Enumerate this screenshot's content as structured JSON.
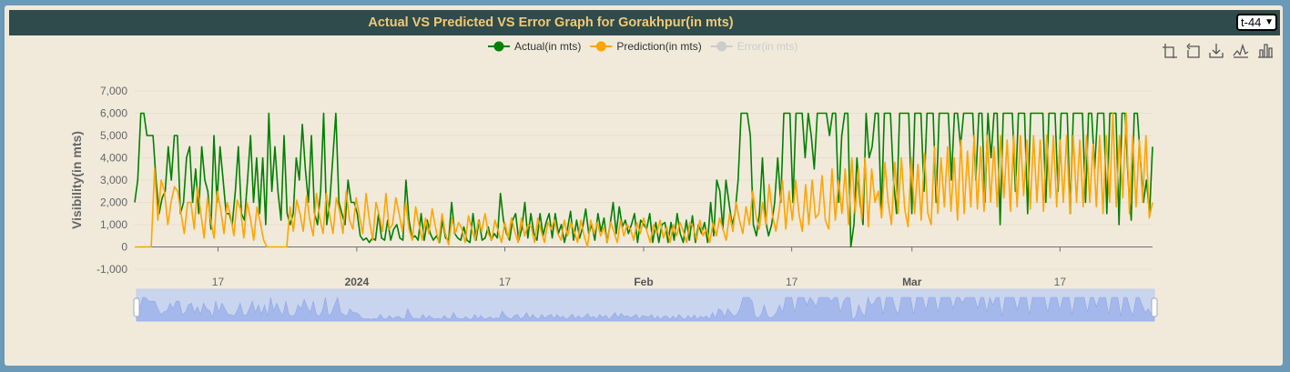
{
  "header": {
    "title": "Actual VS Predicted VS Error Graph for Gorakhpur(in mts)",
    "selector_value": "t-44"
  },
  "legend": [
    {
      "label": "Actual(in mts)",
      "color": "#008000",
      "active": true
    },
    {
      "label": "Prediction(in mts)",
      "color": "#ffa500",
      "active": true
    },
    {
      "label": "Error(in mts)",
      "color": "#cccccc",
      "active": false
    }
  ],
  "toolbar": [
    {
      "name": "zoom-icon"
    },
    {
      "name": "zoom-reset-icon"
    },
    {
      "name": "download-icon"
    },
    {
      "name": "line-chart-icon"
    },
    {
      "name": "bar-chart-icon"
    }
  ],
  "chart_data": {
    "type": "line",
    "title": "Actual VS Predicted VS Error Graph for Gorakhpur(in mts)",
    "ylabel": "Visibility(in mts)",
    "ylim": [
      -1000,
      7000
    ],
    "yticks": [
      "7,000",
      "6,000",
      "5,000",
      "4,000",
      "3,000",
      "2,000",
      "1,000",
      "0",
      "-1,000"
    ],
    "x_ticks": [
      {
        "label": "17",
        "bold": false
      },
      {
        "label": "2024",
        "bold": true
      },
      {
        "label": "17",
        "bold": false
      },
      {
        "label": "Feb",
        "bold": true
      },
      {
        "label": "17",
        "bold": false
      },
      {
        "label": "Mar",
        "bold": true
      },
      {
        "label": "17",
        "bold": false
      }
    ],
    "x_range": [
      "2023-12-08",
      "2024-03-27"
    ],
    "grid": true,
    "legend_position": "top-center",
    "series": [
      {
        "name": "Actual(in mts)",
        "color": "#008000",
        "values": [
          2000,
          3000,
          6000,
          6000,
          5000,
          5000,
          5000,
          3000,
          1500,
          2200,
          2500,
          4500,
          3000,
          5000,
          5000,
          1500,
          2000,
          4000,
          4500,
          2000,
          3500,
          1500,
          4500,
          3000,
          2500,
          800,
          5000,
          2000,
          4500,
          3000,
          1500,
          1500,
          1000,
          2500,
          4500,
          1500,
          1200,
          3000,
          5000,
          2000,
          4000,
          1500,
          4000,
          1000,
          6000,
          2500,
          4500,
          2500,
          1200,
          5000,
          1500,
          1000,
          1500,
          4000,
          3000,
          5500,
          3500,
          2000,
          5000,
          1500,
          1000,
          2500,
          6000,
          1000,
          2000,
          4000,
          6000,
          2000,
          1500,
          1000,
          3000,
          2000,
          2000,
          1500,
          500,
          300,
          400,
          200,
          400,
          300,
          1500,
          400,
          300,
          1200,
          300,
          800,
          1000,
          400,
          300,
          3000,
          1200,
          400,
          500,
          300,
          1500,
          300,
          1200,
          600,
          300,
          500,
          200,
          1200,
          400,
          300,
          2000,
          600,
          400,
          300,
          900,
          300,
          200,
          1500,
          300,
          1200,
          300,
          400,
          900,
          300,
          600,
          400,
          2400,
          1200,
          600,
          300,
          1200,
          1500,
          300,
          800,
          2000,
          400,
          1500,
          600,
          300,
          1500,
          500,
          1100,
          1500,
          400,
          1500,
          600,
          1000,
          200,
          800,
          1600,
          300,
          1200,
          400,
          900,
          1700,
          600,
          1000,
          300,
          1500,
          700,
          1300,
          200,
          1000,
          2000,
          600,
          1800,
          900,
          1200,
          600,
          1000,
          1500,
          200,
          1200,
          1000,
          800,
          1500,
          200,
          1100,
          200,
          1000,
          1100,
          200,
          1100,
          300,
          1500,
          600,
          200,
          1200,
          300,
          1400,
          200,
          1000,
          600,
          1100,
          200,
          2000,
          500,
          3000,
          2500,
          800,
          3000,
          2000,
          1000,
          1500,
          3000,
          6000,
          6000,
          6000,
          5000,
          1000,
          500,
          1500,
          4000,
          1200,
          500,
          1000,
          2000,
          4000,
          2000,
          6000,
          6000,
          6000,
          2000,
          6000,
          6000,
          6000,
          4000,
          6000,
          5000,
          3500,
          6000,
          6000,
          6000,
          6000,
          5000,
          6000,
          6000,
          2000,
          5000,
          6000,
          6000,
          0,
          1000,
          4000,
          2000,
          1000,
          6000,
          4000,
          4500,
          6000,
          6000,
          1500,
          6000,
          6000,
          6000,
          3000,
          1500,
          6000,
          6000,
          6000,
          6000,
          1500,
          6000,
          6000,
          6000,
          2500,
          6000,
          6000,
          6000,
          2000,
          6000,
          6000,
          6000,
          6000,
          3000,
          6000,
          6000,
          4500,
          6000,
          6000,
          6000,
          6000,
          3000,
          6000,
          6000,
          2000,
          6000,
          4000,
          6000,
          6000,
          1000,
          6000,
          6000,
          6000,
          6000,
          2500,
          6000,
          6000,
          6000,
          1500,
          6000,
          6000,
          6000,
          6000,
          6000,
          2000,
          6000,
          6000,
          6000,
          2500,
          6000,
          6000,
          6000,
          1500,
          6000,
          6000,
          6000,
          6000,
          2000,
          6000,
          6000,
          3500,
          6000,
          6000,
          6000,
          1500,
          6000,
          6000,
          6000,
          1000,
          6000,
          6000,
          3000,
          1200,
          6000,
          6000,
          4000,
          2000,
          3000,
          1500,
          4500
        ]
      },
      {
        "name": "Prediction(in mts)",
        "color": "#ffa500",
        "values": [
          0,
          0,
          0,
          0,
          0,
          0,
          3500,
          1200,
          3000,
          2500,
          1000,
          2000,
          2700,
          2500,
          1500,
          600,
          2000,
          2000,
          800,
          2700,
          1500,
          400,
          2200,
          1200,
          400,
          2500,
          1700,
          600,
          2000,
          1400,
          500,
          2100,
          1700,
          400,
          2000,
          1300,
          300,
          1800,
          1100,
          300,
          0,
          0,
          0,
          0,
          0,
          0,
          0,
          1800,
          700,
          2100,
          1500,
          700,
          2300,
          1200,
          500,
          2400,
          1300,
          600,
          2400,
          1400,
          600,
          2200,
          1600,
          600,
          2500,
          1200,
          800,
          2200,
          1400,
          600,
          2400,
          1200,
          300,
          2000,
          1400,
          700,
          2400,
          800,
          1000,
          2200,
          1500,
          700,
          2000,
          800,
          300,
          1800,
          1000,
          300,
          1300,
          600,
          1700,
          900,
          200,
          1500,
          600,
          100,
          1300,
          600,
          1100,
          800,
          200,
          1400,
          800,
          300,
          1200,
          700,
          1500,
          600,
          300,
          1200,
          700,
          200,
          1100,
          400,
          1300,
          700,
          200,
          1300,
          500,
          1000,
          900,
          200,
          1300,
          700,
          200,
          1100,
          800,
          1200,
          600,
          300,
          1200,
          500,
          1100,
          700,
          200,
          1200,
          500,
          0,
          1200,
          600,
          1100,
          500,
          900,
          200,
          1100,
          700,
          200,
          1200,
          500,
          1000,
          800,
          300,
          1100,
          600,
          1300,
          700,
          200,
          1000,
          600,
          1200,
          400,
          900,
          200,
          1000,
          500,
          1100,
          700,
          200,
          1100,
          900,
          300,
          1200,
          500,
          800,
          200,
          1100,
          500,
          1300,
          800,
          300,
          1500,
          700,
          2000,
          1200,
          600,
          1800,
          1000,
          2500,
          1400,
          800,
          2000,
          1000,
          2800,
          1400,
          700,
          1600,
          3000,
          800,
          2500,
          1200,
          3000,
          1500,
          700,
          2800,
          1000,
          3000,
          1300,
          1500,
          3200,
          1200,
          800,
          3500,
          1200,
          3000,
          1500,
          3500,
          1000,
          4000,
          1500,
          3500,
          1200,
          4000,
          900,
          3500,
          2000,
          2500,
          1300,
          3800,
          2000,
          1000,
          3800,
          1500,
          4000,
          1700,
          900,
          4000,
          1500,
          3700,
          1200,
          4200,
          1500,
          1000,
          4500,
          1500,
          4000,
          1800,
          4500,
          1600,
          4000,
          1200,
          4800,
          1500,
          4300,
          1800,
          5000,
          1700,
          4500,
          1600,
          5000,
          2000,
          4500,
          1800,
          5000,
          2200,
          4800,
          1600,
          5000,
          1800,
          5000,
          2300,
          4800,
          1700,
          5000,
          2000,
          4800,
          1600,
          5000,
          2200,
          5000,
          1800,
          4800,
          2000,
          5000,
          1500,
          5000,
          2000,
          4800,
          1800,
          5000,
          2000,
          4600,
          1800,
          5000,
          1500,
          5000,
          2000,
          6000,
          1800,
          5000,
          2200,
          6000,
          1500,
          5000,
          1800,
          4800,
          2000,
          5000,
          1300,
          2000
        ]
      },
      {
        "name": "Error(in mts)",
        "color": "#cccccc",
        "values": []
      }
    ]
  }
}
